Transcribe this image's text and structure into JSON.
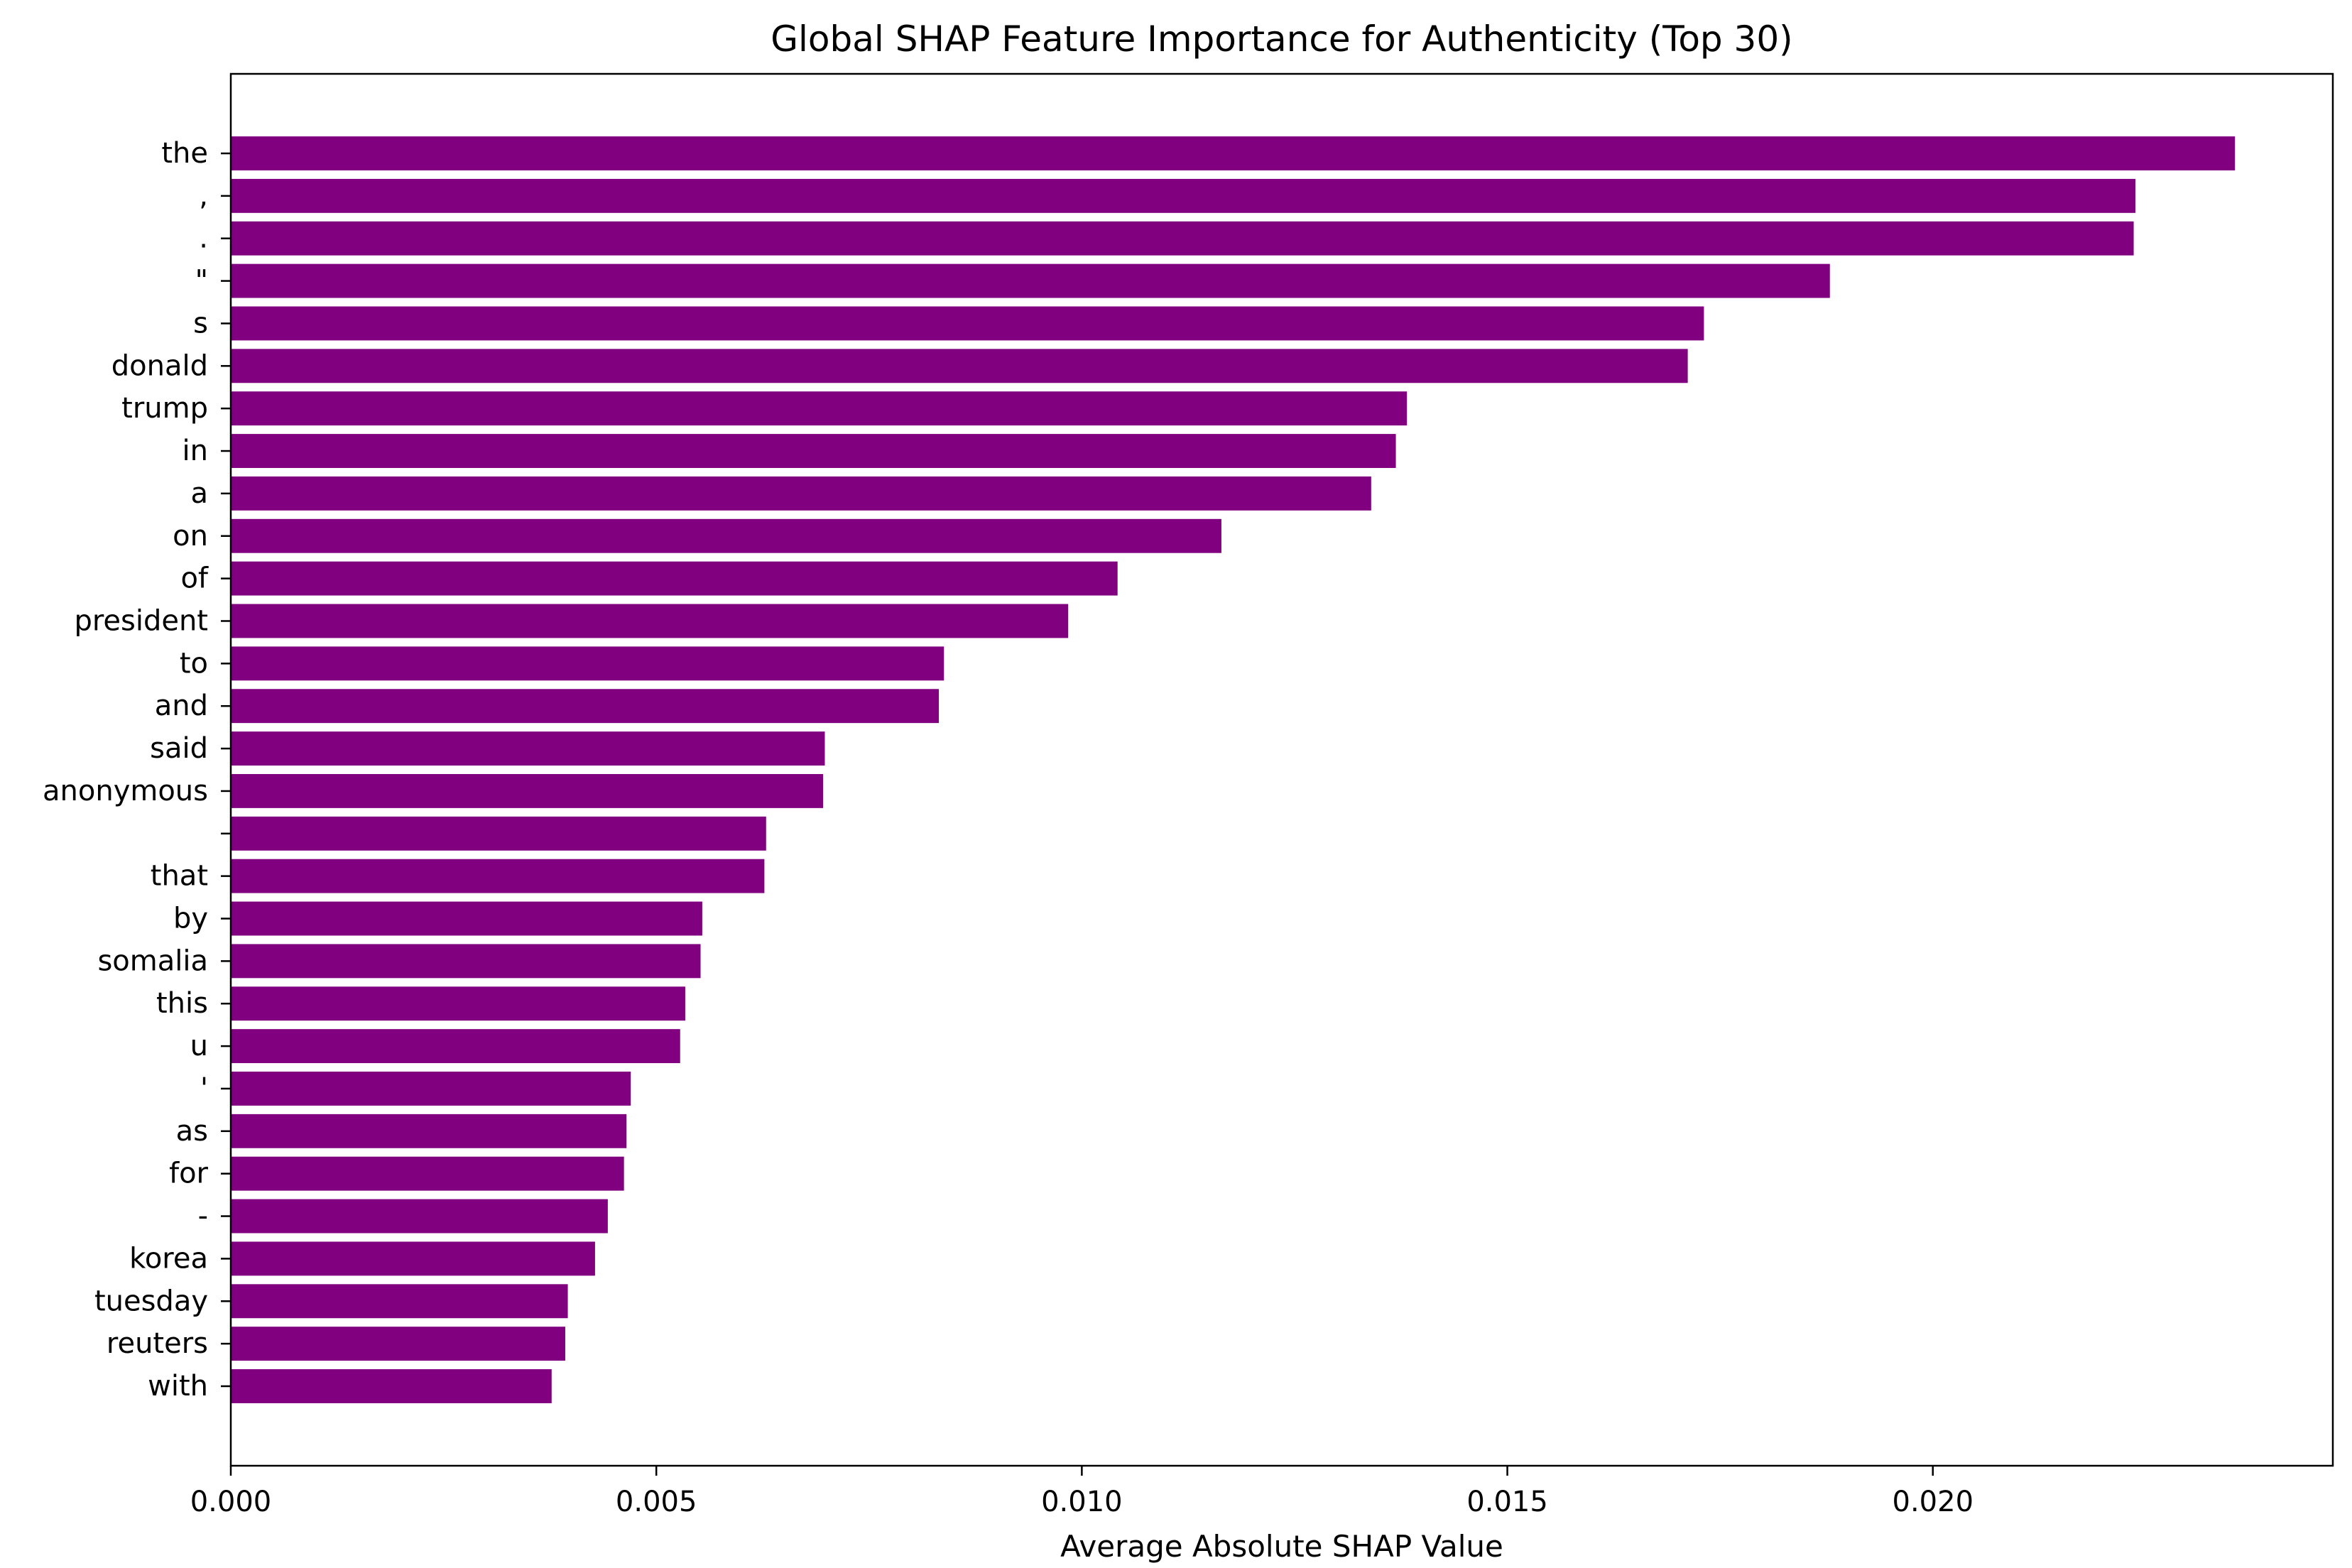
{
  "chart_data": {
    "type": "bar",
    "orientation": "horizontal",
    "title": "Global SHAP Feature Importance for Authenticity (Top 30)",
    "xlabel": "Average Absolute SHAP Value",
    "ylabel": "",
    "xlim": [
      0,
      0.0247
    ],
    "xticks": [
      "0.000",
      "0.005",
      "0.010",
      "0.015",
      "0.020"
    ],
    "xtick_values": [
      0,
      0.005,
      0.01,
      0.015,
      0.02
    ],
    "bar_color": "#800080",
    "grid": false,
    "categories": [
      "the",
      ",",
      ".",
      "\"",
      "s",
      "donald",
      "trump",
      "in",
      "a",
      "on",
      "of",
      "president",
      "to",
      "and",
      "said",
      "anonymous",
      "",
      "that",
      "by",
      "somalia",
      "this",
      "u",
      "'",
      "as",
      "for",
      "-",
      "korea",
      "tuesday",
      "reuters",
      "with"
    ],
    "values": [
      0.02355,
      0.02238,
      0.02236,
      0.01879,
      0.01731,
      0.01712,
      0.01382,
      0.01369,
      0.0134,
      0.01164,
      0.01042,
      0.00984,
      0.00838,
      0.00832,
      0.00698,
      0.00696,
      0.00629,
      0.00627,
      0.00554,
      0.00552,
      0.00534,
      0.00528,
      0.0047,
      0.00465,
      0.00462,
      0.00443,
      0.00428,
      0.00396,
      0.00393,
      0.00377
    ]
  }
}
